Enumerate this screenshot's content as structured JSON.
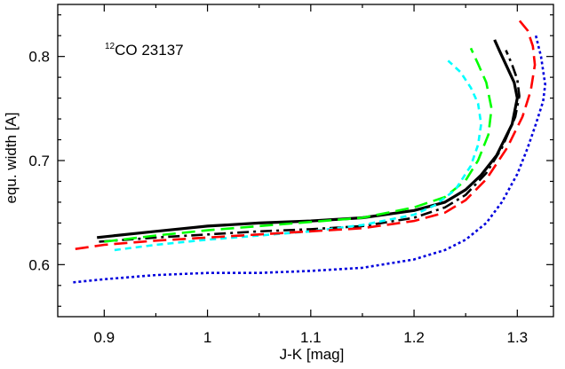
{
  "chart_data": {
    "type": "line",
    "annotation": {
      "superscript": "12",
      "text": "CO 23137"
    },
    "xlabel": "J-K [mag]",
    "ylabel": "equ. width [A]",
    "xlim": [
      0.855,
      1.335
    ],
    "ylim": [
      0.55,
      0.85
    ],
    "xticks": [
      0.9,
      1.0,
      1.1,
      1.2,
      1.3
    ],
    "xtick_labels": [
      "0.9",
      "1",
      "1.1",
      "1.2",
      "1.3"
    ],
    "yticks": [
      0.6,
      0.7,
      0.8
    ],
    "ytick_labels": [
      "0.6",
      "0.7",
      "0.8"
    ],
    "grid": false,
    "series": [
      {
        "color": "#000000",
        "dash": "solid",
        "width": 3.2,
        "x": [
          0.893,
          0.95,
          1.0,
          1.05,
          1.1,
          1.15,
          1.2,
          1.23,
          1.25,
          1.265,
          1.28,
          1.295,
          1.3,
          1.297,
          1.29,
          1.283,
          1.278
        ],
        "y": [
          0.626,
          0.632,
          0.637,
          0.64,
          0.642,
          0.645,
          0.652,
          0.66,
          0.672,
          0.686,
          0.705,
          0.735,
          0.76,
          0.775,
          0.79,
          0.805,
          0.816
        ]
      },
      {
        "color": "#000000",
        "dash": "dashdot",
        "width": 2.6,
        "x": [
          0.895,
          0.95,
          1.0,
          1.05,
          1.1,
          1.15,
          1.2,
          1.23,
          1.25,
          1.27,
          1.285,
          1.298,
          1.302,
          1.3,
          1.295,
          1.289
        ],
        "y": [
          0.622,
          0.626,
          0.629,
          0.632,
          0.634,
          0.637,
          0.645,
          0.655,
          0.667,
          0.688,
          0.712,
          0.742,
          0.762,
          0.778,
          0.792,
          0.806
        ]
      },
      {
        "color": "#00ff00",
        "dash": "longdash",
        "width": 2.6,
        "x": [
          0.9,
          0.95,
          1.0,
          1.05,
          1.1,
          1.15,
          1.2,
          1.23,
          1.25,
          1.262,
          1.272,
          1.275,
          1.27,
          1.262,
          1.255
        ],
        "y": [
          0.622,
          0.628,
          0.633,
          0.637,
          0.641,
          0.645,
          0.655,
          0.665,
          0.681,
          0.7,
          0.725,
          0.75,
          0.775,
          0.793,
          0.808
        ]
      },
      {
        "color": "#00ffff",
        "dash": "dash",
        "width": 2.6,
        "x": [
          0.91,
          0.95,
          1.0,
          1.05,
          1.1,
          1.15,
          1.2,
          1.22,
          1.24,
          1.255,
          1.262,
          1.265,
          1.262,
          1.255,
          1.245,
          1.233
        ],
        "y": [
          0.614,
          0.619,
          0.624,
          0.628,
          0.632,
          0.638,
          0.648,
          0.657,
          0.672,
          0.695,
          0.715,
          0.735,
          0.755,
          0.77,
          0.785,
          0.796
        ]
      },
      {
        "color": "#ff0000",
        "dash": "longdash",
        "width": 2.6,
        "x": [
          0.872,
          0.9,
          0.95,
          1.0,
          1.05,
          1.1,
          1.15,
          1.2,
          1.23,
          1.25,
          1.27,
          1.29,
          1.305,
          1.313,
          1.317,
          1.315,
          1.31,
          1.3
        ],
        "y": [
          0.615,
          0.619,
          0.623,
          0.626,
          0.629,
          0.632,
          0.635,
          0.642,
          0.65,
          0.662,
          0.682,
          0.712,
          0.742,
          0.767,
          0.792,
          0.81,
          0.825,
          0.837
        ]
      },
      {
        "color": "#0000dd",
        "dash": "dot",
        "width": 2.6,
        "x": [
          0.87,
          0.9,
          0.95,
          1.0,
          1.05,
          1.1,
          1.15,
          1.2,
          1.23,
          1.25,
          1.27,
          1.285,
          1.3,
          1.31,
          1.318,
          1.325,
          1.327,
          1.323,
          1.318
        ],
        "y": [
          0.583,
          0.586,
          0.59,
          0.592,
          0.592,
          0.594,
          0.597,
          0.605,
          0.614,
          0.624,
          0.64,
          0.66,
          0.687,
          0.712,
          0.735,
          0.757,
          0.773,
          0.8,
          0.82
        ]
      }
    ]
  }
}
